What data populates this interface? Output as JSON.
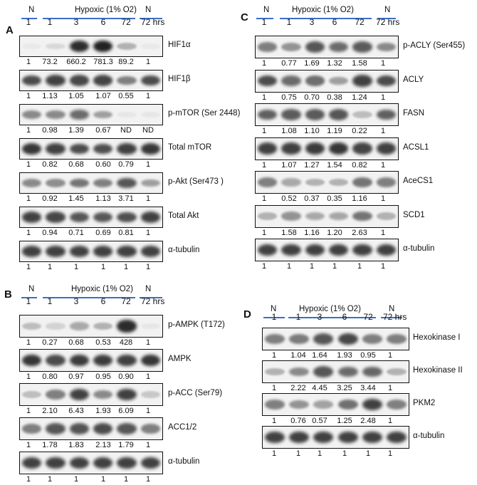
{
  "panels": [
    {
      "letter": "A",
      "lanes": [
        "1",
        "1",
        "3",
        "6",
        "72",
        "72 hrs"
      ],
      "normal": "N",
      "hypoxic": "Hypoxic (1% O2)",
      "blots": [
        {
          "label": "HIF1α",
          "values": [
            "1",
            "73.2",
            "660.2",
            "781.3",
            "89.2",
            "1"
          ],
          "intensity": [
            0.02,
            0.12,
            0.95,
            1.0,
            0.3,
            0.02
          ]
        },
        {
          "label": "HIF1β",
          "values": [
            "1",
            "1.13",
            "1.05",
            "1.07",
            "0.55",
            "1"
          ],
          "intensity": [
            0.8,
            0.85,
            0.82,
            0.83,
            0.55,
            0.8
          ]
        },
        {
          "label": "p-mTOR (Ser 2448)",
          "values": [
            "1",
            "0.98",
            "1.39",
            "0.67",
            "ND",
            "ND"
          ],
          "intensity": [
            0.5,
            0.5,
            0.65,
            0.4,
            0.05,
            0.05
          ]
        },
        {
          "label": "Total mTOR",
          "values": [
            "1",
            "0.82",
            "0.68",
            "0.60",
            "0.79",
            "1"
          ],
          "intensity": [
            0.9,
            0.85,
            0.8,
            0.78,
            0.85,
            0.9
          ]
        },
        {
          "label": "p-Akt (Ser473 )",
          "values": [
            "1",
            "0.92",
            "1.45",
            "1.13",
            "3.71",
            "1"
          ],
          "intensity": [
            0.5,
            0.48,
            0.6,
            0.55,
            0.75,
            0.4
          ]
        },
        {
          "label": "Total Akt",
          "values": [
            "1",
            "0.94",
            "0.71",
            "0.69",
            "0.81",
            "1"
          ],
          "intensity": [
            0.85,
            0.82,
            0.75,
            0.74,
            0.78,
            0.85
          ]
        },
        {
          "label": "α-tubulin",
          "values": [
            "1",
            "1",
            "1",
            "1",
            "1",
            "1"
          ],
          "intensity": [
            0.85,
            0.85,
            0.85,
            0.85,
            0.85,
            0.85
          ]
        }
      ]
    },
    {
      "letter": "B",
      "lanes": [
        "1",
        "1",
        "3",
        "6",
        "72",
        "72 hrs"
      ],
      "normal": "N",
      "hypoxic": "Hypoxic (1% O2)",
      "blots": [
        {
          "label": "p-AMPK (T172)",
          "values": [
            "1",
            "0.27",
            "0.68",
            "0.53",
            "428",
            "1"
          ],
          "intensity": [
            0.25,
            0.15,
            0.35,
            0.3,
            0.95,
            0.05
          ]
        },
        {
          "label": "AMPK",
          "values": [
            "1",
            "0.80",
            "0.97",
            "0.95",
            "0.90",
            "1"
          ],
          "intensity": [
            0.9,
            0.8,
            0.88,
            0.87,
            0.85,
            0.9
          ]
        },
        {
          "label": "p-ACC (Ser79)",
          "values": [
            "1",
            "2.10",
            "6.43",
            "1.93",
            "6.09",
            "1"
          ],
          "intensity": [
            0.25,
            0.55,
            0.85,
            0.5,
            0.85,
            0.2
          ]
        },
        {
          "label": "ACC1/2",
          "values": [
            "1",
            "1.78",
            "1.83",
            "2.13",
            "1.79",
            "1"
          ],
          "intensity": [
            0.55,
            0.75,
            0.76,
            0.8,
            0.75,
            0.55
          ]
        },
        {
          "label": "α-tubulin",
          "values": [
            "1",
            "1",
            "1",
            "1",
            "1",
            "1"
          ],
          "intensity": [
            0.85,
            0.85,
            0.85,
            0.85,
            0.85,
            0.85
          ]
        }
      ]
    },
    {
      "letter": "C",
      "lanes": [
        "1",
        "1",
        "3",
        "6",
        "72",
        "72 hrs"
      ],
      "normal": "N",
      "hypoxic": "Hypoxic (1% O2)",
      "blots": [
        {
          "label": "p-ACLY (Ser455)",
          "values": [
            "1",
            "0.77",
            "1.69",
            "1.32",
            "1.58",
            "1"
          ],
          "intensity": [
            0.55,
            0.45,
            0.75,
            0.65,
            0.72,
            0.5
          ]
        },
        {
          "label": "ACLY",
          "values": [
            "1",
            "0.75",
            "0.70",
            "0.38",
            "1.24",
            "1"
          ],
          "intensity": [
            0.8,
            0.65,
            0.63,
            0.4,
            0.85,
            0.8
          ]
        },
        {
          "label": "FASN",
          "values": [
            "1",
            "1.08",
            "1.10",
            "1.19",
            "0.22",
            "1"
          ],
          "intensity": [
            0.7,
            0.72,
            0.73,
            0.75,
            0.25,
            0.7
          ]
        },
        {
          "label": "ACSL1",
          "values": [
            "1",
            "1.07",
            "1.27",
            "1.54",
            "0.82",
            "1"
          ],
          "intensity": [
            0.85,
            0.86,
            0.88,
            0.9,
            0.83,
            0.85
          ]
        },
        {
          "label": "AceCS1",
          "values": [
            "1",
            "0.52",
            "0.37",
            "0.35",
            "1.16",
            "1"
          ],
          "intensity": [
            0.55,
            0.35,
            0.3,
            0.3,
            0.6,
            0.55
          ]
        },
        {
          "label": "SCD1",
          "values": [
            "1",
            "1.58",
            "1.16",
            "1.20",
            "2.63",
            "1"
          ],
          "intensity": [
            0.3,
            0.45,
            0.35,
            0.36,
            0.6,
            0.3
          ]
        },
        {
          "label": "α-tubulin",
          "values": [
            "1",
            "1",
            "1",
            "1",
            "1",
            "1"
          ],
          "intensity": [
            0.85,
            0.85,
            0.85,
            0.85,
            0.85,
            0.85
          ]
        }
      ]
    },
    {
      "letter": "D",
      "lanes": [
        "1",
        "1",
        "3",
        "6",
        "72",
        "72 hrs"
      ],
      "normal": "N",
      "hypoxic": "Hypoxic (1% O2)",
      "blots": [
        {
          "label": "Hexokinase I",
          "values": [
            "1",
            "1.04",
            "1.64",
            "1.93",
            "0.95",
            "1"
          ],
          "intensity": [
            0.55,
            0.57,
            0.75,
            0.82,
            0.55,
            0.55
          ]
        },
        {
          "label": "Hexokinase II",
          "values": [
            "1",
            "2.22",
            "4.45",
            "3.25",
            "3.44",
            "1"
          ],
          "intensity": [
            0.3,
            0.5,
            0.75,
            0.65,
            0.67,
            0.3
          ]
        },
        {
          "label": "PKM2",
          "values": [
            "1",
            "0.76",
            "0.57",
            "1.25",
            "2.48",
            "1"
          ],
          "intensity": [
            0.55,
            0.45,
            0.38,
            0.62,
            0.85,
            0.55
          ]
        },
        {
          "label": "α-tubulin",
          "values": [
            "1",
            "1",
            "1",
            "1",
            "1",
            "1"
          ],
          "intensity": [
            0.85,
            0.85,
            0.85,
            0.85,
            0.85,
            0.85
          ]
        }
      ]
    }
  ]
}
